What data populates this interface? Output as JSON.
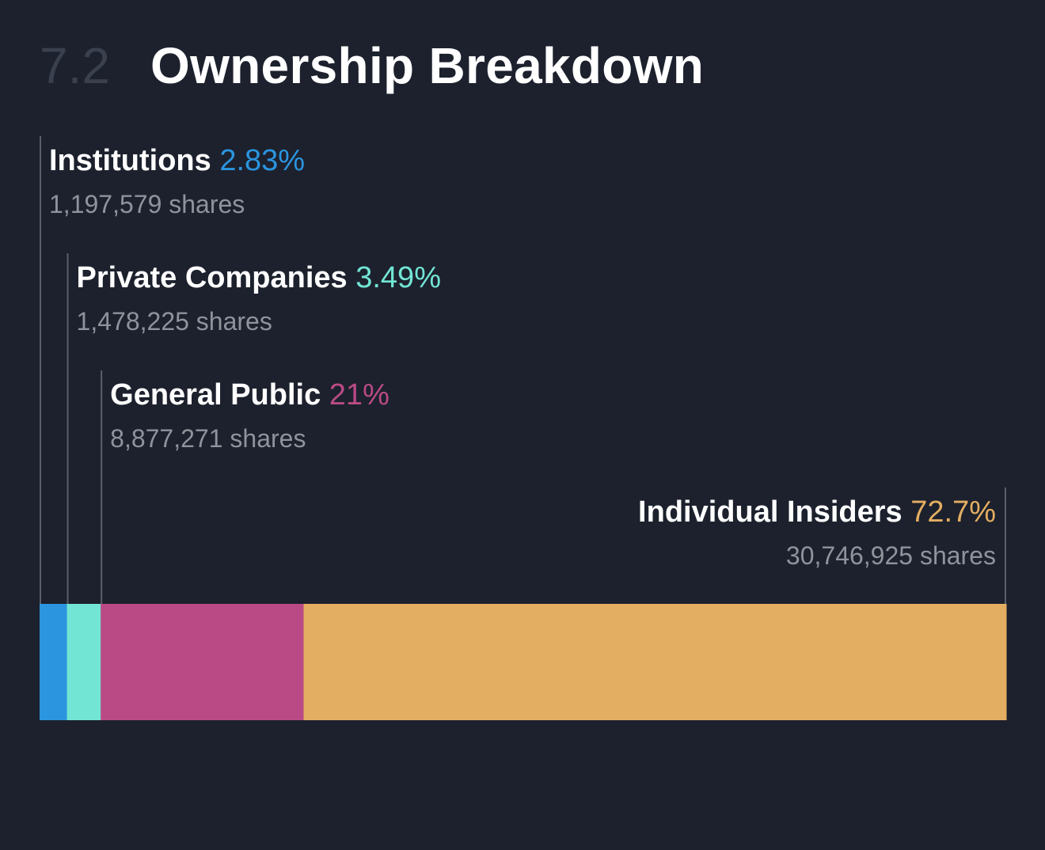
{
  "header": {
    "section_number": "7.2",
    "title": "Ownership Breakdown"
  },
  "chart_data": {
    "type": "bar",
    "orientation": "horizontal-stacked",
    "total_percent": 100,
    "series": [
      {
        "name": "Institutions",
        "percent_label": "2.83%",
        "percent": 2.83,
        "shares": "1,197,579 shares",
        "color": "#2b95e0"
      },
      {
        "name": "Private Companies",
        "percent_label": "3.49%",
        "percent": 3.49,
        "shares": "1,478,225 shares",
        "color": "#72e5d4"
      },
      {
        "name": "General Public",
        "percent_label": "21%",
        "percent": 21,
        "shares": "8,877,271 shares",
        "color": "#ba4a85"
      },
      {
        "name": "Individual Insiders",
        "percent_label": "72.7%",
        "percent": 72.7,
        "shares": "30,746,925 shares",
        "color": "#e4ae62"
      }
    ],
    "colors": {
      "leader_line": "#5a5f6a",
      "background": "#1c212d"
    }
  }
}
